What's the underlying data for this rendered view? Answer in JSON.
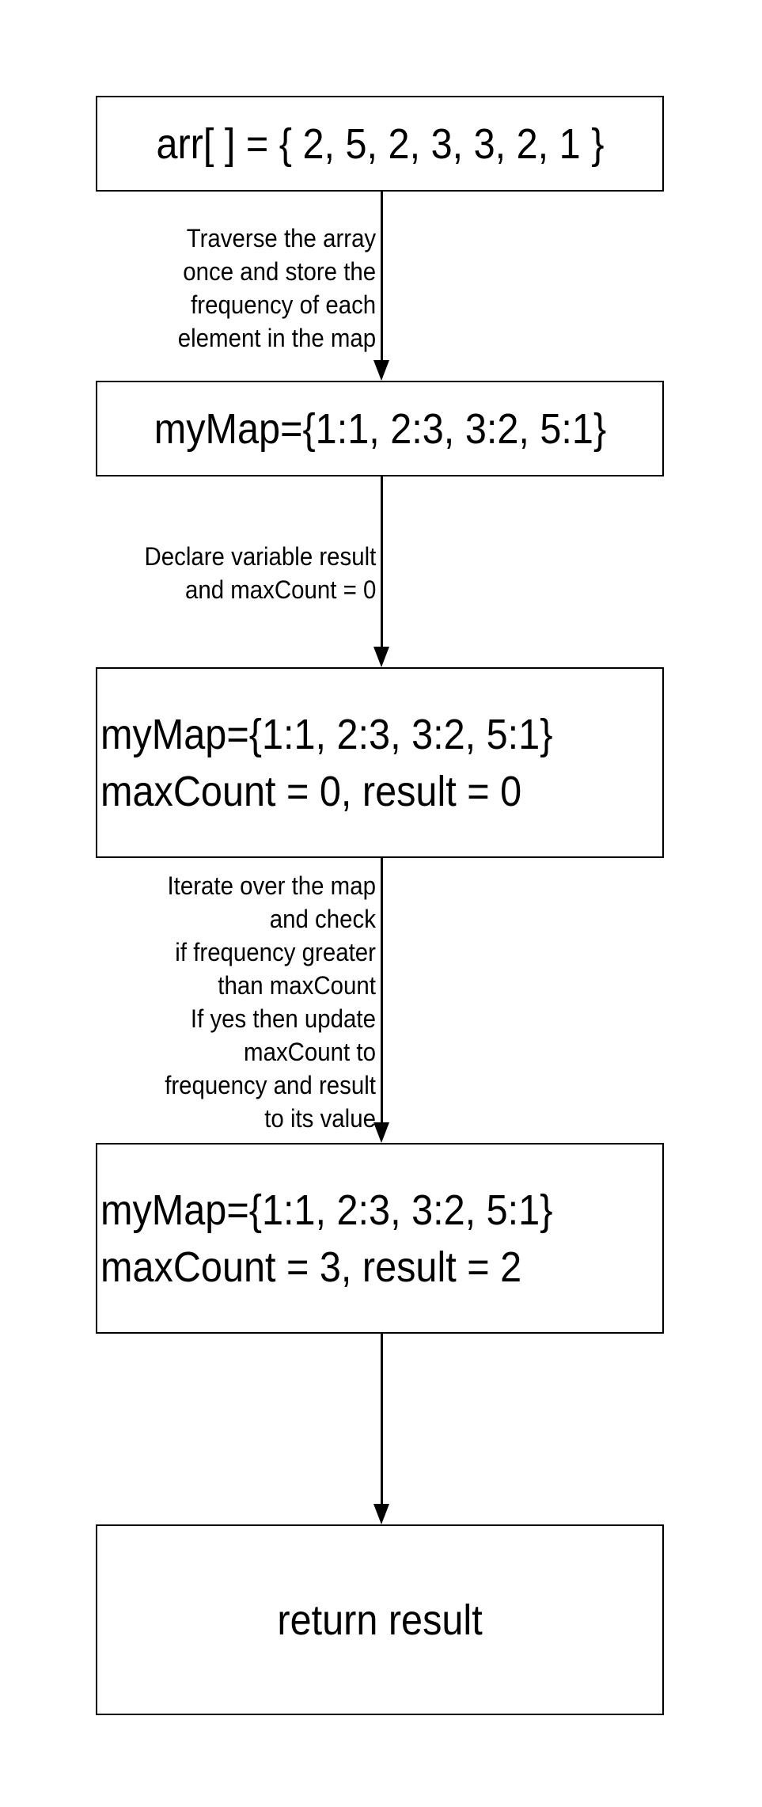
{
  "nodes": [
    {
      "lines": [
        "arr[ ] = { 2, 5, 2, 3, 3, 2, 1 }"
      ]
    },
    {
      "lines": [
        "myMap={1:1, 2:3, 3:2, 5:1}"
      ]
    },
    {
      "lines": [
        "myMap={1:1, 2:3, 3:2, 5:1}",
        "maxCount = 0, result = 0"
      ]
    },
    {
      "lines": [
        "myMap={1:1, 2:3, 3:2, 5:1}",
        "maxCount = 3, result = 2"
      ]
    },
    {
      "lines": [
        "return result"
      ]
    }
  ],
  "edges": [
    {
      "label": [
        "Traverse the array",
        "once and store the",
        "frequency of each",
        "element in the map"
      ]
    },
    {
      "label": [
        "Declare variable result",
        "and maxCount = 0"
      ]
    },
    {
      "label": [
        "Iterate over the map",
        "and check",
        "if frequency greater",
        "than maxCount",
        "If yes then update",
        "maxCount to",
        "frequency and result",
        "to its value"
      ]
    },
    {
      "label": []
    }
  ]
}
